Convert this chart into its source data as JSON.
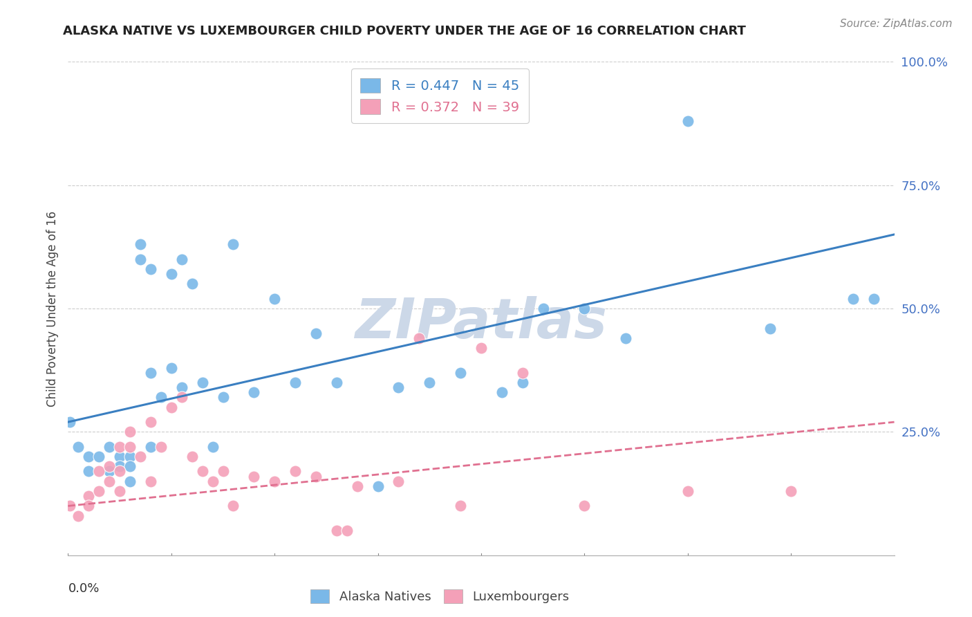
{
  "title": "ALASKA NATIVE VS LUXEMBOURGER CHILD POVERTY UNDER THE AGE OF 16 CORRELATION CHART",
  "source": "Source: ZipAtlas.com",
  "ylabel": "Child Poverty Under the Age of 16",
  "alaska_R": 0.447,
  "alaska_N": 45,
  "luxembourger_R": 0.372,
  "luxembourger_N": 39,
  "alaska_color": "#7ab8e8",
  "luxembourger_color": "#f4a0b8",
  "alaska_line_color": "#3a7fc1",
  "luxembourger_line_color": "#e07090",
  "background_color": "#ffffff",
  "watermark_color": "#ccd8e8",
  "alaska_scatter_x": [
    0.001,
    0.005,
    0.01,
    0.01,
    0.015,
    0.02,
    0.02,
    0.025,
    0.025,
    0.03,
    0.03,
    0.03,
    0.035,
    0.035,
    0.04,
    0.04,
    0.04,
    0.045,
    0.05,
    0.05,
    0.055,
    0.055,
    0.06,
    0.065,
    0.07,
    0.075,
    0.08,
    0.09,
    0.1,
    0.11,
    0.12,
    0.13,
    0.15,
    0.16,
    0.175,
    0.19,
    0.21,
    0.22,
    0.23,
    0.25,
    0.27,
    0.3,
    0.34,
    0.38,
    0.39
  ],
  "alaska_scatter_y": [
    0.27,
    0.22,
    0.2,
    0.17,
    0.2,
    0.22,
    0.17,
    0.2,
    0.18,
    0.2,
    0.18,
    0.15,
    0.63,
    0.6,
    0.58,
    0.37,
    0.22,
    0.32,
    0.57,
    0.38,
    0.6,
    0.34,
    0.55,
    0.35,
    0.22,
    0.32,
    0.63,
    0.33,
    0.52,
    0.35,
    0.45,
    0.35,
    0.14,
    0.34,
    0.35,
    0.37,
    0.33,
    0.35,
    0.5,
    0.5,
    0.44,
    0.88,
    0.46,
    0.52,
    0.52
  ],
  "luxembourger_scatter_x": [
    0.001,
    0.005,
    0.01,
    0.01,
    0.015,
    0.015,
    0.02,
    0.02,
    0.025,
    0.025,
    0.025,
    0.03,
    0.03,
    0.035,
    0.04,
    0.04,
    0.045,
    0.05,
    0.055,
    0.06,
    0.065,
    0.07,
    0.075,
    0.08,
    0.09,
    0.1,
    0.11,
    0.12,
    0.13,
    0.135,
    0.14,
    0.16,
    0.17,
    0.19,
    0.2,
    0.22,
    0.25,
    0.3,
    0.35
  ],
  "luxembourger_scatter_y": [
    0.1,
    0.08,
    0.12,
    0.1,
    0.17,
    0.13,
    0.18,
    0.15,
    0.22,
    0.17,
    0.13,
    0.25,
    0.22,
    0.2,
    0.27,
    0.15,
    0.22,
    0.3,
    0.32,
    0.2,
    0.17,
    0.15,
    0.17,
    0.1,
    0.16,
    0.15,
    0.17,
    0.16,
    0.05,
    0.05,
    0.14,
    0.15,
    0.44,
    0.1,
    0.42,
    0.37,
    0.1,
    0.13,
    0.13
  ],
  "alaska_line_x": [
    0.0,
    0.4
  ],
  "alaska_line_y": [
    0.27,
    0.65
  ],
  "luxembourger_line_x": [
    0.0,
    0.4
  ],
  "luxembourger_line_y": [
    0.1,
    0.27
  ],
  "xlim": [
    0.0,
    0.4
  ],
  "ylim": [
    0.0,
    1.0
  ],
  "yticks": [
    0.0,
    0.25,
    0.5,
    0.75,
    1.0
  ],
  "ytick_labels": [
    "",
    "25.0%",
    "50.0%",
    "75.0%",
    "100.0%"
  ]
}
